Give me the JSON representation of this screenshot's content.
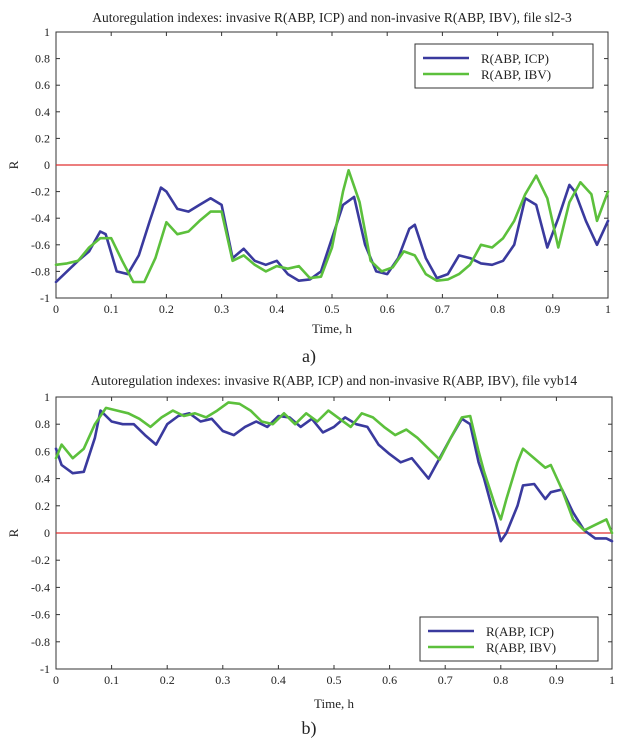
{
  "figure": {
    "panels": [
      {
        "caption": "a)"
      },
      {
        "caption": "b)"
      }
    ]
  },
  "chart_data": [
    {
      "type": "line",
      "title": "Autoregulation indexes: invasive R(ABP, ICP) and non-invasive R(ABP, IBV), file sl2-3",
      "xlabel": "Time, h",
      "ylabel": "R",
      "xlim": [
        0,
        1
      ],
      "ylim": [
        -1,
        1
      ],
      "xticks": [
        0,
        0.1,
        0.2,
        0.3,
        0.4,
        0.5,
        0.6,
        0.7,
        0.8,
        0.9,
        1
      ],
      "xtick_labels": [
        "0",
        "0.1",
        "0.2",
        "0.3",
        "0.4",
        "0.5",
        "0.6",
        "0.7",
        "0.8",
        "0.9",
        "1"
      ],
      "yticks": [
        -1,
        -0.8,
        -0.6,
        -0.4,
        -0.2,
        0,
        0.2,
        0.4,
        0.6,
        0.8,
        1
      ],
      "ytick_labels": [
        "-1",
        "-0.8",
        "-0.6",
        "-0.4",
        "-0.2",
        "0",
        "0.2",
        "0.4",
        "0.6",
        "0.8",
        "1"
      ],
      "grid": false,
      "legend": "top-right",
      "reference_line": {
        "y": 0,
        "color": "#e03030"
      },
      "series": [
        {
          "name": "R(ABP, ICP)",
          "color": "#3a3a9e",
          "x": [
            0,
            0.02,
            0.04,
            0.06,
            0.08,
            0.09,
            0.11,
            0.13,
            0.15,
            0.17,
            0.19,
            0.2,
            0.22,
            0.24,
            0.26,
            0.28,
            0.3,
            0.32,
            0.34,
            0.36,
            0.38,
            0.4,
            0.42,
            0.44,
            0.46,
            0.48,
            0.5,
            0.52,
            0.54,
            0.56,
            0.58,
            0.6,
            0.62,
            0.64,
            0.65,
            0.67,
            0.69,
            0.71,
            0.73,
            0.75,
            0.77,
            0.79,
            0.81,
            0.83,
            0.85,
            0.87,
            0.89,
            0.91,
            0.93,
            0.94,
            0.96,
            0.98,
            1.0
          ],
          "y": [
            -0.88,
            -0.8,
            -0.72,
            -0.65,
            -0.5,
            -0.52,
            -0.8,
            -0.82,
            -0.68,
            -0.42,
            -0.17,
            -0.2,
            -0.33,
            -0.35,
            -0.3,
            -0.25,
            -0.3,
            -0.7,
            -0.63,
            -0.72,
            -0.75,
            -0.72,
            -0.82,
            -0.87,
            -0.86,
            -0.8,
            -0.55,
            -0.3,
            -0.24,
            -0.6,
            -0.8,
            -0.82,
            -0.7,
            -0.48,
            -0.45,
            -0.7,
            -0.85,
            -0.82,
            -0.68,
            -0.7,
            -0.74,
            -0.75,
            -0.72,
            -0.6,
            -0.25,
            -0.3,
            -0.62,
            -0.4,
            -0.15,
            -0.2,
            -0.42,
            -0.6,
            -0.42
          ]
        },
        {
          "name": "R(ABP, IBV)",
          "color": "#5cc03c",
          "x": [
            0,
            0.02,
            0.04,
            0.06,
            0.08,
            0.1,
            0.12,
            0.14,
            0.16,
            0.18,
            0.2,
            0.22,
            0.24,
            0.26,
            0.28,
            0.3,
            0.32,
            0.34,
            0.36,
            0.38,
            0.4,
            0.42,
            0.44,
            0.46,
            0.48,
            0.5,
            0.52,
            0.53,
            0.55,
            0.57,
            0.59,
            0.61,
            0.63,
            0.65,
            0.67,
            0.69,
            0.71,
            0.73,
            0.75,
            0.77,
            0.79,
            0.81,
            0.83,
            0.85,
            0.87,
            0.89,
            0.91,
            0.93,
            0.95,
            0.97,
            0.98,
            1.0
          ],
          "y": [
            -0.75,
            -0.74,
            -0.72,
            -0.62,
            -0.55,
            -0.55,
            -0.72,
            -0.88,
            -0.88,
            -0.7,
            -0.43,
            -0.52,
            -0.5,
            -0.42,
            -0.35,
            -0.35,
            -0.72,
            -0.68,
            -0.75,
            -0.8,
            -0.76,
            -0.78,
            -0.76,
            -0.85,
            -0.84,
            -0.62,
            -0.2,
            -0.04,
            -0.28,
            -0.72,
            -0.8,
            -0.77,
            -0.65,
            -0.68,
            -0.82,
            -0.87,
            -0.86,
            -0.82,
            -0.75,
            -0.6,
            -0.62,
            -0.55,
            -0.42,
            -0.22,
            -0.08,
            -0.25,
            -0.62,
            -0.28,
            -0.13,
            -0.22,
            -0.42,
            -0.2
          ]
        }
      ]
    },
    {
      "type": "line",
      "title": "Autoregulation indexes: invasive R(ABP, ICP) and non-invasive R(ABP, IBV), file vyb14",
      "xlabel": "Time, h",
      "ylabel": "R",
      "xlim": [
        0,
        1
      ],
      "ylim": [
        -1,
        1
      ],
      "xticks": [
        0,
        0.1,
        0.2,
        0.3,
        0.4,
        0.5,
        0.6,
        0.7,
        0.8,
        0.9,
        1
      ],
      "xtick_labels": [
        "0",
        "0.1",
        "0.2",
        "0.3",
        "0.4",
        "0.5",
        "0.6",
        "0.7",
        "0.8",
        "0.9",
        "1"
      ],
      "yticks": [
        -1,
        -0.8,
        -0.6,
        -0.4,
        -0.2,
        0,
        0.2,
        0.4,
        0.6,
        0.8,
        1
      ],
      "ytick_labels": [
        "-1",
        "-0.8",
        "-0.6",
        "-0.4",
        "-0.2",
        "0",
        "0.2",
        "0.4",
        "0.6",
        "0.8",
        "1"
      ],
      "grid": false,
      "legend": "bottom-right",
      "reference_line": {
        "y": 0,
        "color": "#e03030"
      },
      "series": [
        {
          "name": "R(ABP, ICP)",
          "color": "#3a3a9e",
          "x": [
            0,
            0.01,
            0.03,
            0.05,
            0.07,
            0.08,
            0.1,
            0.12,
            0.14,
            0.16,
            0.18,
            0.2,
            0.22,
            0.24,
            0.26,
            0.28,
            0.3,
            0.32,
            0.34,
            0.36,
            0.38,
            0.4,
            0.42,
            0.44,
            0.46,
            0.48,
            0.5,
            0.52,
            0.54,
            0.56,
            0.58,
            0.6,
            0.62,
            0.64,
            0.66,
            0.67,
            0.69,
            0.71,
            0.73,
            0.745,
            0.76,
            0.77,
            0.79,
            0.8,
            0.81,
            0.83,
            0.84,
            0.86,
            0.88,
            0.89,
            0.91,
            0.93,
            0.95,
            0.97,
            0.99,
            1.0
          ],
          "y": [
            0.62,
            0.5,
            0.44,
            0.45,
            0.7,
            0.9,
            0.82,
            0.8,
            0.8,
            0.72,
            0.65,
            0.8,
            0.86,
            0.88,
            0.82,
            0.84,
            0.75,
            0.72,
            0.78,
            0.82,
            0.78,
            0.86,
            0.85,
            0.78,
            0.84,
            0.74,
            0.78,
            0.85,
            0.8,
            0.78,
            0.65,
            0.58,
            0.52,
            0.55,
            0.45,
            0.4,
            0.55,
            0.7,
            0.84,
            0.8,
            0.52,
            0.4,
            0.1,
            -0.06,
            0.0,
            0.2,
            0.35,
            0.36,
            0.25,
            0.3,
            0.32,
            0.15,
            0.02,
            -0.04,
            -0.04,
            -0.06
          ]
        },
        {
          "name": "R(ABP, IBV)",
          "color": "#5cc03c",
          "x": [
            0,
            0.01,
            0.03,
            0.05,
            0.07,
            0.09,
            0.11,
            0.13,
            0.15,
            0.17,
            0.19,
            0.21,
            0.23,
            0.25,
            0.27,
            0.29,
            0.31,
            0.33,
            0.35,
            0.37,
            0.39,
            0.41,
            0.43,
            0.45,
            0.47,
            0.49,
            0.51,
            0.53,
            0.55,
            0.57,
            0.59,
            0.61,
            0.63,
            0.65,
            0.67,
            0.69,
            0.71,
            0.73,
            0.745,
            0.76,
            0.77,
            0.79,
            0.8,
            0.81,
            0.83,
            0.84,
            0.86,
            0.88,
            0.89,
            0.91,
            0.93,
            0.95,
            0.97,
            0.99,
            1.0
          ],
          "y": [
            0.55,
            0.65,
            0.55,
            0.62,
            0.8,
            0.92,
            0.9,
            0.88,
            0.84,
            0.78,
            0.85,
            0.9,
            0.86,
            0.88,
            0.85,
            0.9,
            0.96,
            0.95,
            0.9,
            0.82,
            0.8,
            0.88,
            0.8,
            0.88,
            0.82,
            0.9,
            0.84,
            0.78,
            0.88,
            0.85,
            0.78,
            0.72,
            0.76,
            0.7,
            0.62,
            0.54,
            0.7,
            0.85,
            0.86,
            0.6,
            0.45,
            0.2,
            0.1,
            0.25,
            0.52,
            0.62,
            0.55,
            0.48,
            0.5,
            0.32,
            0.1,
            0.02,
            0.06,
            0.1,
            0.0
          ]
        }
      ]
    }
  ]
}
